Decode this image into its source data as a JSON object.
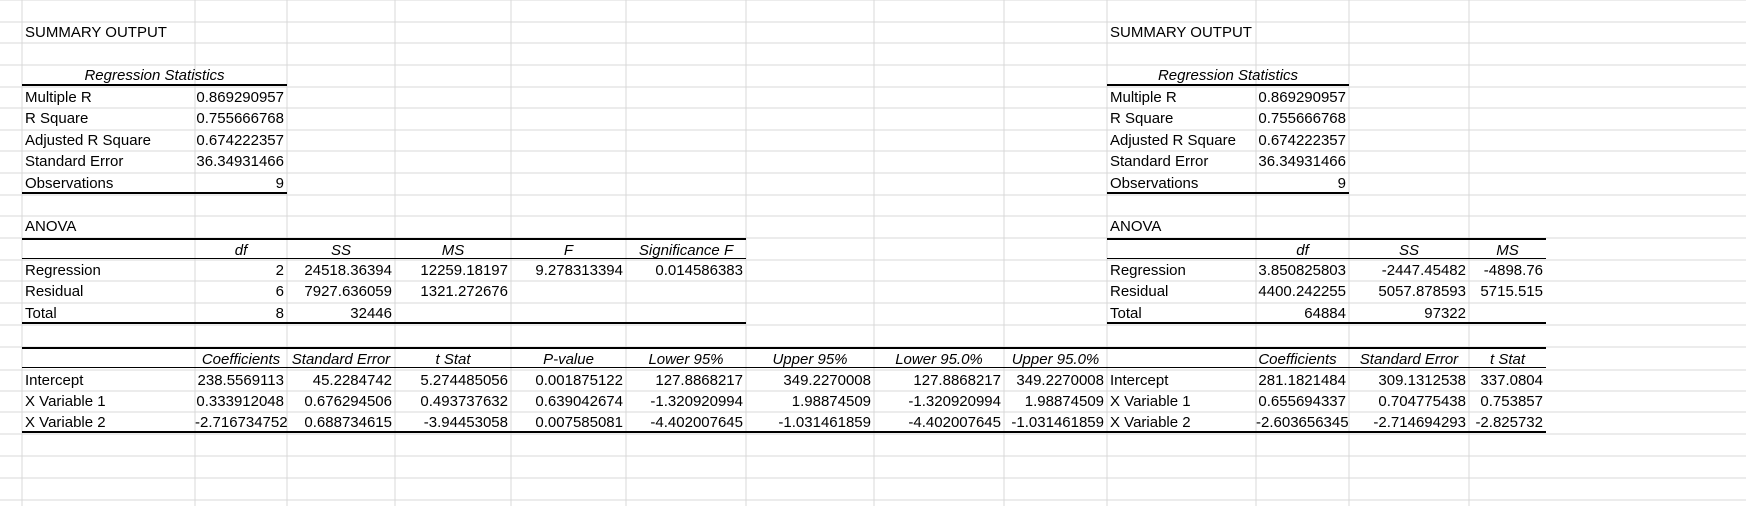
{
  "left": {
    "title": "SUMMARY OUTPUT",
    "reg_stats": {
      "header": "Regression Statistics",
      "rows": [
        {
          "label": "Multiple R",
          "value": "0.869290957"
        },
        {
          "label": "R Square",
          "value": "0.755666768"
        },
        {
          "label": "Adjusted R Square",
          "value": "0.674222357"
        },
        {
          "label": "Standard Error",
          "value": "36.34931466"
        },
        {
          "label": "Observations",
          "value": "9"
        }
      ]
    },
    "anova": {
      "title": "ANOVA",
      "headers": [
        "df",
        "SS",
        "MS",
        "F",
        "Significance F"
      ],
      "rows": [
        {
          "label": "Regression",
          "cells": [
            "2",
            "24518.36394",
            "12259.18197",
            "9.278313394",
            "0.014586383"
          ]
        },
        {
          "label": "Residual",
          "cells": [
            "6",
            "7927.636059",
            "1321.272676",
            "",
            ""
          ]
        },
        {
          "label": "Total",
          "cells": [
            "8",
            "32446",
            "",
            "",
            ""
          ]
        }
      ]
    },
    "coef": {
      "headers": [
        "Coefficients",
        "Standard Error",
        "t Stat",
        "P-value",
        "Lower 95%",
        "Upper 95%",
        "Lower 95.0%",
        "Upper 95.0%"
      ],
      "rows": [
        {
          "label": "Intercept",
          "cells": [
            "238.5569113",
            "45.2284742",
            "5.274485056",
            "0.001875122",
            "127.8868217",
            "349.2270008",
            "127.8868217",
            "349.2270008"
          ]
        },
        {
          "label": "X Variable 1",
          "cells": [
            "0.333912048",
            "0.676294506",
            "0.493737632",
            "0.639042674",
            "-1.320920994",
            "1.98874509",
            "-1.320920994",
            "1.98874509"
          ]
        },
        {
          "label": "X Variable 2",
          "cells": [
            "-2.716734752",
            "0.688734615",
            "-3.94453058",
            "0.007585081",
            "-4.402007645",
            "-1.031461859",
            "-4.402007645",
            "-1.031461859"
          ]
        }
      ]
    }
  },
  "right": {
    "title": "SUMMARY OUTPUT",
    "reg_stats": {
      "header": "Regression Statistics",
      "rows": [
        {
          "label": "Multiple R",
          "value": "0.869290957"
        },
        {
          "label": "R Square",
          "value": "0.755666768"
        },
        {
          "label": "Adjusted R Square",
          "value": "0.674222357"
        },
        {
          "label": "Standard Error",
          "value": "36.34931466"
        },
        {
          "label": "Observations",
          "value": "9"
        }
      ]
    },
    "anova": {
      "title": "ANOVA",
      "headers": [
        "df",
        "SS",
        "MS"
      ],
      "rows": [
        {
          "label": "Regression",
          "cells": [
            "3.850825803",
            "-2447.45482",
            "-4898.76"
          ]
        },
        {
          "label": "Residual",
          "cells": [
            "4400.242255",
            "5057.878593",
            "5715.515"
          ]
        },
        {
          "label": "Total",
          "cells": [
            "64884",
            "97322",
            ""
          ]
        }
      ]
    },
    "coef": {
      "headers": [
        "Coefficients",
        "Standard Error",
        "t Stat"
      ],
      "rows": [
        {
          "label": "Intercept",
          "cells": [
            "281.1821484",
            "309.1312538",
            "337.0804"
          ]
        },
        {
          "label": "X Variable 1",
          "cells": [
            "0.655694337",
            "0.704775438",
            "0.753857"
          ]
        },
        {
          "label": "X Variable 2",
          "cells": [
            "-2.603656345",
            "-2.714694293",
            "-2.825732"
          ]
        }
      ]
    }
  }
}
